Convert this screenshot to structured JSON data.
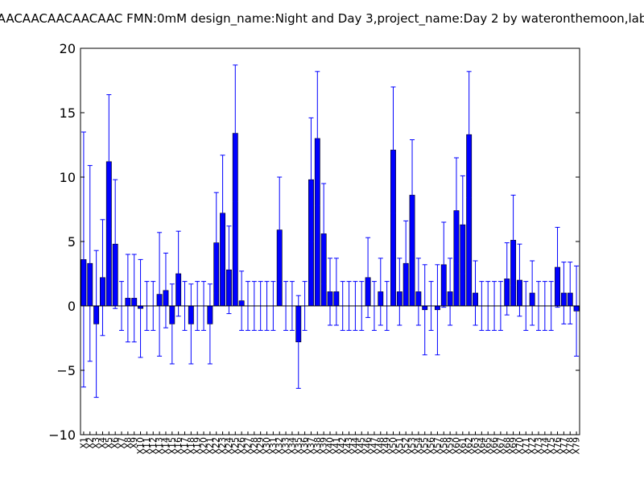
{
  "chart_data": {
    "type": "bar",
    "title": "AACAACAACAACAAC  FMN:0mM  design_name:Night and Day 3,project_name:Day 2 by wateronthemoon,lab",
    "xlabel": "",
    "ylabel": "",
    "ylim": [
      -10,
      20
    ],
    "yticks": [
      -10,
      -5,
      0,
      5,
      10,
      15,
      20
    ],
    "grid": false,
    "legend": "none",
    "colors": {
      "bar": "#0000ff",
      "errorbar": "#0000ff",
      "axis": "#000000"
    },
    "categories": [
      "X1",
      "X2",
      "X3",
      "X4",
      "X5",
      "X6",
      "X7",
      "X8",
      "X9",
      "X10",
      "X11",
      "X12",
      "X13",
      "X14",
      "X15",
      "X16",
      "X17",
      "X18",
      "X19",
      "X20",
      "X21",
      "X22",
      "X23",
      "X24",
      "X25",
      "X26",
      "X27",
      "X28",
      "X29",
      "X30",
      "X31",
      "X32",
      "X33",
      "X34",
      "X35",
      "X36",
      "X37",
      "X38",
      "X39",
      "X40",
      "X41",
      "X42",
      "X43",
      "X44",
      "X45",
      "X46",
      "X47",
      "X48",
      "X49",
      "X50",
      "X51",
      "X52",
      "X53",
      "X54",
      "X55",
      "X56",
      "X57",
      "X58",
      "X59",
      "X60",
      "X61",
      "X62",
      "X63",
      "X64",
      "X65",
      "X66",
      "X67",
      "X68",
      "X69",
      "X70",
      "X71",
      "X72",
      "X73",
      "X74",
      "X75",
      "X76",
      "X77",
      "X78",
      "X79"
    ],
    "values": [
      3.6,
      3.3,
      -1.4,
      2.2,
      11.2,
      4.8,
      0,
      0.6,
      0.6,
      -0.2,
      0,
      0,
      0.9,
      1.2,
      -1.4,
      2.5,
      0,
      -1.4,
      0,
      0,
      -1.4,
      4.9,
      7.2,
      2.8,
      13.4,
      0.4,
      0,
      0,
      0,
      0,
      0,
      5.9,
      0,
      0,
      -2.8,
      0,
      9.8,
      13.0,
      5.6,
      1.1,
      1.1,
      0,
      0,
      0,
      0,
      2.2,
      0,
      1.1,
      0,
      12.1,
      1.1,
      3.3,
      8.6,
      1.1,
      -0.3,
      0,
      -0.3,
      3.2,
      1.1,
      7.4,
      6.3,
      13.3,
      1.0,
      0,
      0,
      0,
      0,
      2.1,
      5.1,
      2.0,
      0,
      1.0,
      0,
      0,
      0,
      3.0,
      1.0,
      1.0,
      -0.4
    ],
    "errors": [
      9.9,
      7.6,
      5.7,
      4.5,
      5.2,
      5.0,
      1.9,
      3.4,
      3.4,
      3.8,
      1.9,
      1.9,
      4.8,
      2.9,
      3.1,
      3.3,
      1.9,
      3.1,
      1.9,
      1.9,
      3.1,
      3.9,
      4.5,
      3.4,
      5.3,
      2.3,
      1.9,
      1.9,
      1.9,
      1.9,
      1.9,
      4.1,
      1.9,
      1.9,
      3.6,
      1.9,
      4.8,
      5.2,
      3.9,
      2.6,
      2.6,
      1.9,
      1.9,
      1.9,
      1.9,
      3.1,
      1.9,
      2.6,
      1.9,
      4.9,
      2.6,
      3.3,
      4.3,
      2.6,
      3.5,
      1.9,
      3.5,
      3.3,
      2.6,
      4.1,
      3.8,
      4.9,
      2.5,
      1.9,
      1.9,
      1.9,
      1.9,
      2.8,
      3.5,
      2.8,
      1.9,
      2.5,
      1.9,
      1.9,
      1.9,
      3.1,
      2.4,
      2.4,
      3.5
    ]
  }
}
